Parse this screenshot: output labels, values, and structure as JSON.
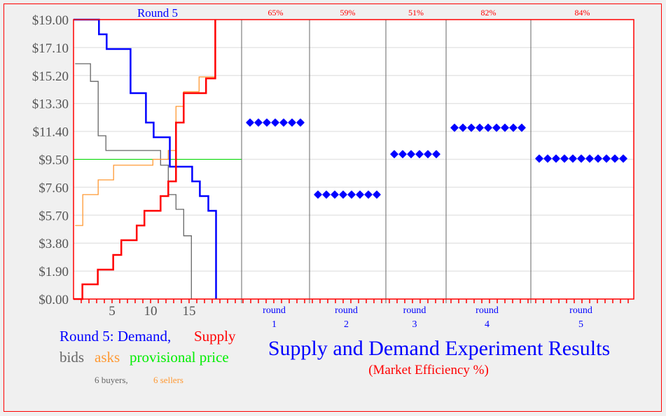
{
  "chart_data": {
    "type": "line",
    "left_panel": {
      "title": "Round 5",
      "ylim": [
        0,
        19
      ],
      "y_ticks": [
        "$0.00",
        "$1.90",
        "$3.80",
        "$5.70",
        "$7.60",
        "$9.50",
        "$11.40",
        "$13.30",
        "$15.20",
        "$17.10",
        "$19.00"
      ],
      "x_ticks": [
        "5",
        "10",
        "15"
      ],
      "x_tick_values": [
        5,
        10,
        15
      ],
      "series": [
        {
          "name": "bids",
          "color": "#666666",
          "points": [
            [
              0.2,
              16
            ],
            [
              2.2,
              16
            ],
            [
              2.2,
              14.8
            ],
            [
              3.2,
              14.8
            ],
            [
              3.2,
              11.1
            ],
            [
              4.2,
              11.1
            ],
            [
              4.2,
              10.1
            ],
            [
              11.3,
              10.1
            ],
            [
              11.3,
              9.1
            ],
            [
              12.3,
              9.1
            ],
            [
              12.3,
              7.1
            ],
            [
              13.3,
              7.1
            ],
            [
              13.3,
              6.1
            ],
            [
              14.3,
              6.1
            ],
            [
              14.3,
              4.3
            ],
            [
              15.3,
              4.3
            ],
            [
              15.3,
              0
            ]
          ]
        },
        {
          "name": "asks",
          "color": "#ff9933",
          "points": [
            [
              0.2,
              5
            ],
            [
              1.2,
              5
            ],
            [
              1.2,
              7.1
            ],
            [
              3.2,
              7.1
            ],
            [
              3.2,
              8.1
            ],
            [
              5.2,
              8.1
            ],
            [
              5.2,
              9.1
            ],
            [
              10.3,
              9.1
            ],
            [
              10.3,
              9.5
            ],
            [
              12.3,
              9.5
            ],
            [
              12.3,
              10.1
            ],
            [
              13.3,
              10.1
            ],
            [
              13.3,
              13.1
            ],
            [
              14.3,
              13.1
            ],
            [
              14.3,
              14.1
            ],
            [
              16.3,
              14.1
            ],
            [
              16.3,
              15.1
            ],
            [
              18.4,
              15.1
            ],
            [
              18.4,
              19
            ]
          ]
        },
        {
          "name": "Demand",
          "color": "#0000ff",
          "points": [
            [
              0,
              19
            ],
            [
              3.3,
              19
            ],
            [
              3.3,
              18
            ],
            [
              4.3,
              18
            ],
            [
              4.3,
              17
            ],
            [
              7.4,
              17
            ],
            [
              7.4,
              14
            ],
            [
              9.4,
              14
            ],
            [
              9.4,
              12
            ],
            [
              10.4,
              12
            ],
            [
              10.4,
              11
            ],
            [
              12.5,
              11
            ],
            [
              12.5,
              9
            ],
            [
              15.4,
              9
            ],
            [
              15.4,
              8
            ],
            [
              16.4,
              8
            ],
            [
              16.4,
              7
            ],
            [
              17.5,
              7
            ],
            [
              17.5,
              6
            ],
            [
              18.5,
              6
            ],
            [
              18.5,
              0
            ]
          ]
        },
        {
          "name": "Supply",
          "color": "#ff0000",
          "points": [
            [
              0,
              0
            ],
            [
              1.15,
              0
            ],
            [
              1.15,
              1
            ],
            [
              3.15,
              1
            ],
            [
              3.15,
              2
            ],
            [
              5.15,
              2
            ],
            [
              5.15,
              3
            ],
            [
              6.2,
              3
            ],
            [
              6.2,
              4
            ],
            [
              8.2,
              4
            ],
            [
              8.2,
              5
            ],
            [
              9.2,
              5
            ],
            [
              9.2,
              6
            ],
            [
              11.3,
              6
            ],
            [
              11.3,
              7
            ],
            [
              12.3,
              7
            ],
            [
              12.3,
              8
            ],
            [
              13.3,
              8
            ],
            [
              13.3,
              12
            ],
            [
              14.3,
              12
            ],
            [
              14.3,
              14
            ],
            [
              17.2,
              14
            ],
            [
              17.2,
              15
            ],
            [
              18.4,
              15
            ],
            [
              18.4,
              19
            ]
          ]
        }
      ],
      "provisional_price": 9.5,
      "provisional_color": "#00dd00"
    },
    "rounds": [
      {
        "label": "round",
        "number": "1",
        "efficiency": "65%",
        "prices": [
          12.0,
          12.0,
          12.0,
          12.0,
          12.0,
          12.0,
          12.0
        ]
      },
      {
        "label": "round",
        "number": "2",
        "efficiency": "59%",
        "prices": [
          7.1,
          7.1,
          7.1,
          7.1,
          7.1,
          7.1,
          7.1,
          7.1
        ]
      },
      {
        "label": "round",
        "number": "3",
        "efficiency": "51%",
        "prices": [
          9.85,
          9.85,
          9.85,
          9.85,
          9.85,
          9.85
        ]
      },
      {
        "label": "round",
        "number": "4",
        "efficiency": "82%",
        "prices": [
          11.65,
          11.65,
          11.65,
          11.65,
          11.65,
          11.65,
          11.65,
          11.65,
          11.65
        ]
      },
      {
        "label": "round",
        "number": "5",
        "efficiency": "84%",
        "prices": [
          9.55,
          9.55,
          9.55,
          9.55,
          9.55,
          9.55,
          9.55,
          9.55,
          9.55,
          9.55,
          9.55
        ]
      }
    ],
    "title": "Supply and Demand Experiment Results",
    "subtitle": "(Market Efficiency %)",
    "dot_color": "#0000ff"
  },
  "legend": {
    "round_demand": "Round 5: Demand,",
    "supply": "Supply",
    "bids": "bids",
    "asks": "asks",
    "provisional": "provisional price",
    "buyers": "6 buyers,",
    "sellers": "6 sellers"
  }
}
